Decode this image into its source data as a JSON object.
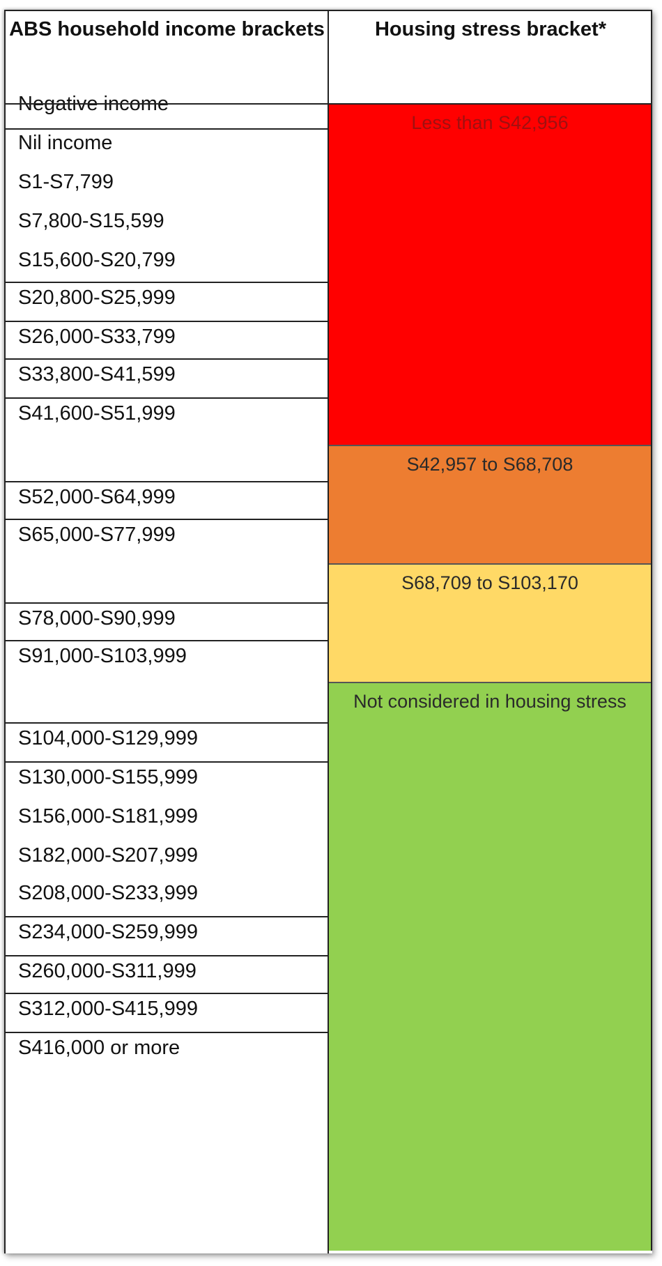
{
  "header": {
    "left": "ABS household income brackets",
    "right": "Housing stress bracket*"
  },
  "income_brackets": [
    "Negative income",
    "Nil income",
    "S1-S7,799",
    "S7,800-S15,599",
    "S15,600-S20,799",
    "S20,800-S25,999",
    "S26,000-S33,799",
    "S33,800-S41,599",
    "S41,600-S51,999",
    "S52,000-S64,999",
    "S65,000-S77,999",
    "S78,000-S90,999",
    "S91,000-S103,999",
    "S104,000-S129,999",
    "S130,000-S155,999",
    "S156,000-S181,999",
    "S182,000-S207,999",
    "S208,000-S233,999",
    "S234,000-S259,999",
    "S260,000-S311,999",
    "S312,000-S415,999",
    "S416,000 or more"
  ],
  "stress_brackets": [
    {
      "label": "Less than S42,956",
      "color": "#ff0000",
      "text_color": "#a01010"
    },
    {
      "label": "S42,957 to S68,708",
      "color": "#ed7d31",
      "text_color": "#2a2a2a"
    },
    {
      "label": "S68,709 to S103,170",
      "color": "#ffd966",
      "text_color": "#2a2a2a"
    },
    {
      "label": "Not considered in housing stress",
      "color": "#92d050",
      "text_color": "#2a2a2a"
    }
  ]
}
